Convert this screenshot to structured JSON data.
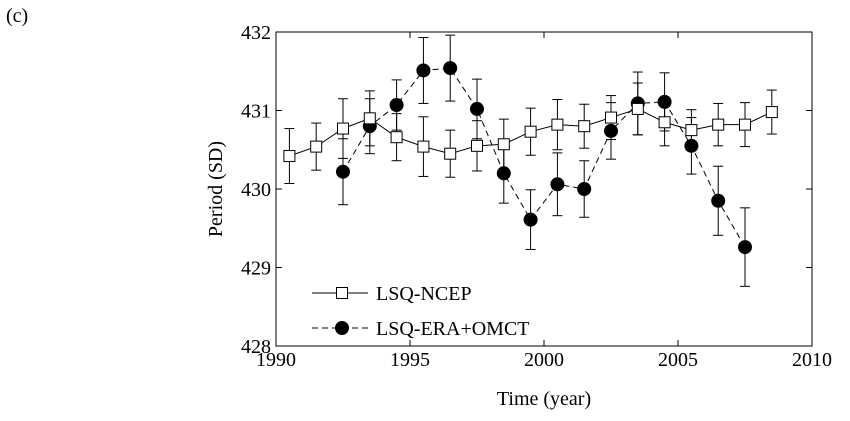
{
  "panel_label": "(c)",
  "chart_data": {
    "type": "line",
    "title": "",
    "xlabel": "Time (year)",
    "ylabel": "Period (SD)",
    "xlim": [
      1990,
      2010
    ],
    "ylim": [
      428,
      432
    ],
    "xticks": [
      1990,
      1995,
      2000,
      2005,
      2010
    ],
    "yticks": [
      428,
      429,
      430,
      431,
      432
    ],
    "grid": false,
    "legend_position": "bottom-left",
    "series": [
      {
        "name": "LSQ-NCEP",
        "marker": "open-square",
        "line_style": "solid",
        "color": "#000000",
        "points": [
          {
            "x": 1990.5,
            "y": 430.42,
            "err": 0.35
          },
          {
            "x": 1991.5,
            "y": 430.54,
            "err": 0.3
          },
          {
            "x": 1992.5,
            "y": 430.77,
            "err": 0.38
          },
          {
            "x": 1993.5,
            "y": 430.9,
            "err": 0.35
          },
          {
            "x": 1994.5,
            "y": 430.66,
            "err": 0.3
          },
          {
            "x": 1995.5,
            "y": 430.54,
            "err": 0.38
          },
          {
            "x": 1996.5,
            "y": 430.45,
            "err": 0.3
          },
          {
            "x": 1997.5,
            "y": 430.55,
            "err": 0.32
          },
          {
            "x": 1998.5,
            "y": 430.57,
            "err": 0.32
          },
          {
            "x": 1999.5,
            "y": 430.73,
            "err": 0.3
          },
          {
            "x": 2000.5,
            "y": 430.82,
            "err": 0.32
          },
          {
            "x": 2001.5,
            "y": 430.8,
            "err": 0.28
          },
          {
            "x": 2002.5,
            "y": 430.91,
            "err": 0.28
          },
          {
            "x": 2003.5,
            "y": 431.02,
            "err": 0.33
          },
          {
            "x": 2004.5,
            "y": 430.85,
            "err": 0.3
          },
          {
            "x": 2005.5,
            "y": 430.75,
            "err": 0.26
          },
          {
            "x": 2006.5,
            "y": 430.82,
            "err": 0.27
          },
          {
            "x": 2007.5,
            "y": 430.82,
            "err": 0.28
          },
          {
            "x": 2008.5,
            "y": 430.98,
            "err": 0.28
          }
        ]
      },
      {
        "name": "LSQ-ERA+OMCT",
        "marker": "filled-circle",
        "line_style": "dashed",
        "color": "#000000",
        "points": [
          {
            "x": 1992.5,
            "y": 430.22,
            "err": 0.42
          },
          {
            "x": 1993.5,
            "y": 430.8,
            "err": 0.35
          },
          {
            "x": 1994.5,
            "y": 431.07,
            "err": 0.32
          },
          {
            "x": 1995.5,
            "y": 431.51,
            "err": 0.42
          },
          {
            "x": 1996.5,
            "y": 431.54,
            "err": 0.42
          },
          {
            "x": 1997.5,
            "y": 431.02,
            "err": 0.38
          },
          {
            "x": 1998.5,
            "y": 430.2,
            "err": 0.38
          },
          {
            "x": 1999.5,
            "y": 429.61,
            "err": 0.38
          },
          {
            "x": 2000.5,
            "y": 430.06,
            "err": 0.4
          },
          {
            "x": 2001.5,
            "y": 430.0,
            "err": 0.36
          },
          {
            "x": 2002.5,
            "y": 430.74,
            "err": 0.36
          },
          {
            "x": 2003.5,
            "y": 431.09,
            "err": 0.4
          },
          {
            "x": 2004.5,
            "y": 431.11,
            "err": 0.37
          },
          {
            "x": 2005.5,
            "y": 430.55,
            "err": 0.36
          },
          {
            "x": 2006.5,
            "y": 429.85,
            "err": 0.44
          },
          {
            "x": 2007.5,
            "y": 429.26,
            "err": 0.5
          }
        ]
      }
    ]
  }
}
